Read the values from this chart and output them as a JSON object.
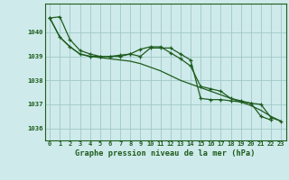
{
  "title": "Graphe pression niveau de la mer (hPa)",
  "background_color": "#ceeaea",
  "line_color": "#1e5c1e",
  "grid_color": "#a0c8c8",
  "xlim": [
    -0.5,
    23.5
  ],
  "ylim": [
    1035.5,
    1041.2
  ],
  "yticks": [
    1036,
    1037,
    1038,
    1039,
    1040
  ],
  "xticks": [
    0,
    1,
    2,
    3,
    4,
    5,
    6,
    7,
    8,
    9,
    10,
    11,
    12,
    13,
    14,
    15,
    16,
    17,
    18,
    19,
    20,
    21,
    22,
    23
  ],
  "series": [
    {
      "x": [
        0,
        1,
        2,
        3,
        4,
        5,
        6,
        7,
        8,
        9,
        10,
        11,
        12,
        13,
        14,
        15,
        16,
        17,
        18,
        19,
        20,
        21,
        22
      ],
      "y": [
        1040.6,
        1040.65,
        1039.7,
        1039.25,
        1039.1,
        1039.0,
        1039.0,
        1039.0,
        1039.1,
        1039.0,
        1039.35,
        1039.35,
        1039.35,
        1039.1,
        1038.85,
        1037.25,
        1037.2,
        1037.2,
        1037.15,
        1037.1,
        1037.05,
        1036.5,
        1036.35
      ],
      "marker": "+"
    },
    {
      "x": [
        0,
        1,
        2,
        3,
        4,
        5,
        6,
        7,
        8,
        9,
        10,
        11,
        12,
        13,
        14,
        15,
        16,
        17,
        18,
        19,
        20,
        21,
        22,
        23
      ],
      "y": [
        1040.6,
        1039.8,
        1039.4,
        1039.1,
        1039.0,
        1039.0,
        1039.0,
        1039.05,
        1039.1,
        1039.3,
        1039.4,
        1039.4,
        1039.15,
        1038.9,
        1038.6,
        1037.75,
        1037.65,
        1037.55,
        1037.25,
        1037.15,
        1037.05,
        1037.0,
        1036.45,
        1036.3
      ],
      "marker": "+"
    },
    {
      "x": [
        0,
        1,
        2,
        3,
        4,
        5,
        6,
        7,
        8,
        9,
        10,
        11,
        12,
        13,
        14,
        15,
        16,
        17,
        18,
        19,
        20,
        21,
        22,
        23
      ],
      "y": [
        1040.6,
        1039.8,
        1039.4,
        1039.1,
        1039.0,
        1038.95,
        1038.9,
        1038.85,
        1038.8,
        1038.7,
        1038.55,
        1038.4,
        1038.2,
        1038.0,
        1037.85,
        1037.7,
        1037.55,
        1037.4,
        1037.25,
        1037.1,
        1036.95,
        1036.75,
        1036.5,
        1036.3
      ],
      "marker": null
    }
  ]
}
